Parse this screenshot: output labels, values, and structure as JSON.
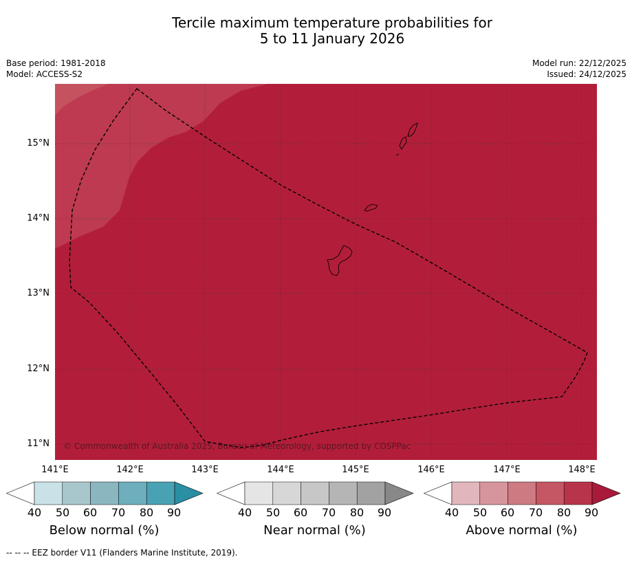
{
  "title": {
    "line1": "Tercile maximum temperature probabilities for",
    "line2": "5 to 11 January 2026"
  },
  "meta": {
    "base_period": "Base period: 1981-2018",
    "model": "Model: ACCESS-S2",
    "model_run": "Model run: 22/12/2025",
    "issued": "Issued: 24/12/2025"
  },
  "map": {
    "lat_labels": [
      "15°N",
      "14°N",
      "13°N",
      "12°N",
      "11°N"
    ],
    "lon_labels": [
      "141°E",
      "142°E",
      "143°E",
      "144°E",
      "145°E",
      "146°E",
      "147°E",
      "148°E"
    ],
    "colors": {
      "above_90": "#b21e3a",
      "above_80": "#bd3a50",
      "above_70": "#c4525f",
      "eez_line": "#000000",
      "land_fill": "#b21e3a"
    },
    "copyright": "© Commonwealth of Australia 2025, Bureau of Meteorology, supported by COSPPac"
  },
  "colorbars": [
    {
      "title": "Below normal (%)",
      "ticks": [
        "40",
        "50",
        "60",
        "70",
        "80",
        "90"
      ],
      "colors": [
        "#ffffff",
        "#c9e2e8",
        "#a8c7cc",
        "#8ab6c0",
        "#6eaebd",
        "#49a2b3",
        "#2b8fa4"
      ]
    },
    {
      "title": "Near normal (%)",
      "ticks": [
        "40",
        "50",
        "60",
        "70",
        "80",
        "90"
      ],
      "colors": [
        "#ffffff",
        "#e5e5e5",
        "#d7d7d7",
        "#c7c7c7",
        "#b5b5b5",
        "#a2a2a2",
        "#888888"
      ]
    },
    {
      "title": "Above normal (%)",
      "ticks": [
        "40",
        "50",
        "60",
        "70",
        "80",
        "90"
      ],
      "colors": [
        "#ffffff",
        "#e2b6bd",
        "#d6959c",
        "#cd7a82",
        "#c45763",
        "#b8344b",
        "#a91a3a"
      ]
    }
  ],
  "footnote": "--  --  -- EEZ border V11 (Flanders Marine Institute, 2019)."
}
